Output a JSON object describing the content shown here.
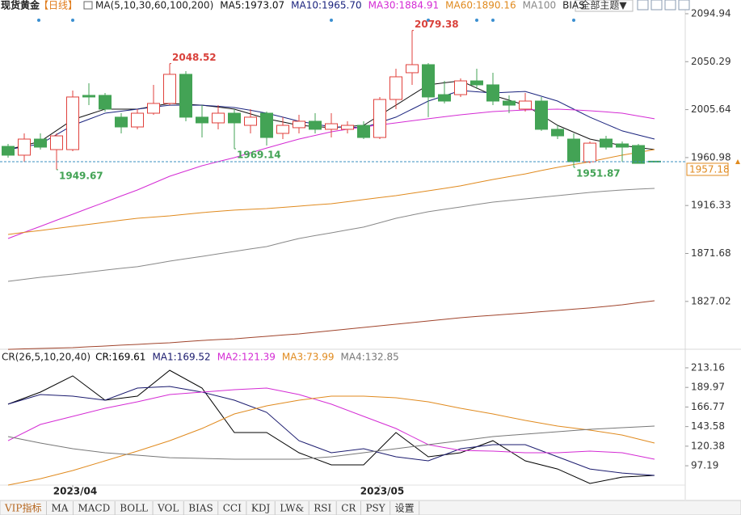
{
  "chart_data": [
    {
      "type": "candlestick",
      "title": "现货黄金",
      "period": "【日线】",
      "indicator": "MA(5,10,30,60,100,200)",
      "bias_label": "BIAS",
      "categories": [
        null,
        null,
        null,
        null,
        "2023/04",
        null,
        null,
        null,
        null,
        null,
        null,
        null,
        null,
        null,
        null,
        null,
        null,
        null,
        null,
        null,
        null,
        null,
        null,
        "2023/05",
        null,
        null,
        null,
        null,
        null,
        null,
        null,
        null,
        null,
        null,
        null,
        null,
        null,
        null,
        null,
        null,
        null
      ],
      "open": [
        1971.4,
        1963.2,
        1978.2,
        1968.4,
        1968.4,
        2018.9,
        2018.9,
        1998.6,
        1989.5,
        2002.3,
        2011.4,
        2038.5,
        1998.6,
        1993.3,
        2002.3,
        1991.0,
        2002.3,
        1983.5,
        1988.8,
        1994.8,
        1987.3,
        1987.3,
        1991.0,
        1979.7,
        2015.1,
        2040.0,
        2047.5,
        2019.6,
        2019.6,
        2032.4,
        2028.7,
        2013.6,
        2006.1,
        2013.6,
        1987.3,
        1978.2,
        1957.1,
        1978.2,
        1973.7,
        1972.2,
        1957.6
      ],
      "high": [
        1973.7,
        1983.5,
        1983.5,
        1983.5,
        2023.4,
        2030.2,
        2021.1,
        2002.3,
        2006.1,
        2028.7,
        2048.52,
        2041.5,
        2009.8,
        2009.8,
        2006.1,
        2006.1,
        2003.8,
        1998.6,
        2000.8,
        2002.3,
        2002.3,
        1994.8,
        1994.8,
        2017.4,
        2043.7,
        2079.38,
        2049.0,
        2032.4,
        2034.7,
        2043.7,
        2040.0,
        2018.9,
        2021.1,
        2017.4,
        1991.0,
        1983.5,
        1976.0,
        1981.2,
        1976.0,
        1973.7,
        1957.8
      ],
      "low": [
        1960.9,
        1957.1,
        1968.4,
        1949.67,
        1966.9,
        2009.8,
        2003.8,
        1983.5,
        1987.3,
        2000.8,
        2009.8,
        1994.8,
        1979.7,
        1987.3,
        1969.14,
        1983.5,
        1972.2,
        1978.2,
        1983.5,
        1983.5,
        1979.7,
        1983.5,
        1978.2,
        1978.2,
        2006.1,
        2028.7,
        1998.6,
        2011.4,
        2017.4,
        2024.9,
        2009.8,
        2002.3,
        2003.8,
        1985.8,
        1978.2,
        1951.87,
        1955.6,
        1968.4,
        1957.1,
        1955.6,
        1956.9
      ],
      "close": [
        1963.2,
        1978.2,
        1970.7,
        1981.2,
        2017.4,
        2017.4,
        2006.1,
        1989.5,
        2002.3,
        2011.4,
        2038.5,
        1998.6,
        1993.3,
        2002.3,
        1993.3,
        1998.6,
        1979.7,
        1991.0,
        1994.8,
        1987.3,
        1992.5,
        1991.0,
        1979.7,
        2015.1,
        2036.2,
        2047.5,
        2017.4,
        2013.6,
        2032.4,
        2028.7,
        2013.6,
        2009.8,
        2013.6,
        1987.3,
        1981.2,
        1957.1,
        1974.4,
        1970.7,
        1970.7,
        1955.6,
        1957.18
      ],
      "up_color": "#e0413c",
      "down_color": "#43a355",
      "ylim": [
        1780.2,
        2101.7
      ],
      "yticks": [
        2094.94,
        2050.29,
        2005.64,
        1960.98,
        1916.33,
        1871.68,
        1827.02
      ],
      "series": [
        {
          "name": "MA5:1973.07",
          "color": "#111111",
          "values": [
            1968.4,
            1972.2,
            1976.0,
            1986.2,
            1996.3,
            2001.2,
            2006.1,
            2006.1,
            2006.1,
            2008.8,
            2011.4,
            2010.6,
            2009.8,
            2008.0,
            2006.1,
            2001.6,
            1997.1,
            1994.1,
            1991.0,
            1989.9,
            1988.8,
            1989.9,
            1991.0,
            2000.4,
            2009.8,
            2019.3,
            2028.7,
            2030.6,
            2032.4,
            2025.7,
            2018.9,
            2014.4,
            2009.8,
            2000.4,
            1991.0,
            1984.6,
            1978.2,
            1975.2,
            1972.2,
            1970.3,
            1968.4
          ]
        },
        {
          "name": "MA10:1965.70",
          "color": "#1a237e",
          "values": [
            1968.4,
            1971.1,
            1973.7,
            1982.4,
            1991.0,
            1996.7,
            2002.3,
            2004.2,
            2006.1,
            2008.0,
            2009.8,
            2009.8,
            2009.8,
            2008.7,
            2007.6,
            2005.0,
            2002.3,
            1998.6,
            1994.8,
            1992.2,
            1989.5,
            1989.2,
            1988.8,
            1993.7,
            1998.6,
            2006.1,
            2013.6,
            2018.5,
            2023.4,
            2022.3,
            2021.1,
            2021.9,
            2022.6,
            2018.1,
            2013.6,
            2006.1,
            1998.6,
            1992.2,
            1985.8,
            1982.0,
            1978.2
          ]
        },
        {
          "name": "MA30:1884.91",
          "color": "#d42bd4",
          "values": [
            1885.6,
            1891.3,
            1896.9,
            1902.6,
            1908.2,
            1913.9,
            1919.5,
            1925.2,
            1930.8,
            1937.2,
            1943.6,
            1948.5,
            1953.4,
            1957.2,
            1960.9,
            1965.4,
            1969.9,
            1974.1,
            1978.2,
            1981.6,
            1985.0,
            1987.3,
            1989.5,
            1991.4,
            1993.3,
            1995.2,
            1997.1,
            1999.0,
            2000.8,
            2002.3,
            2003.8,
            2004.6,
            2005.3,
            2005.7,
            2006.1,
            2005.4,
            2004.6,
            2003.5,
            2002.3,
            1999.7,
            1997.1
          ]
        },
        {
          "name": "MA60:1890.16",
          "color": "#e08a1e",
          "values": [
            1889.4,
            1891.3,
            1893.1,
            1895.0,
            1896.9,
            1898.8,
            1900.7,
            1902.6,
            1904.4,
            1905.6,
            1906.7,
            1908.2,
            1909.7,
            1910.9,
            1912.0,
            1912.8,
            1913.5,
            1914.6,
            1915.7,
            1916.9,
            1918.0,
            1919.9,
            1921.8,
            1923.7,
            1925.5,
            1927.8,
            1930.0,
            1932.3,
            1934.6,
            1937.6,
            1940.6,
            1943.2,
            1945.8,
            1948.9,
            1951.9,
            1954.5,
            1957.1,
            1960.2,
            1963.2,
            1965.8,
            1968.4
          ]
        },
        {
          "name": "MA100",
          "color": "#888888",
          "values": [
            1845.7,
            1847.6,
            1849.5,
            1851.0,
            1852.5,
            1854.4,
            1856.2,
            1857.8,
            1859.3,
            1861.9,
            1864.5,
            1866.8,
            1869.0,
            1871.3,
            1873.6,
            1875.9,
            1878.1,
            1881.9,
            1885.6,
            1888.3,
            1890.9,
            1893.6,
            1896.2,
            1900.3,
            1904.4,
            1907.5,
            1910.5,
            1912.8,
            1915.0,
            1917.3,
            1919.5,
            1921.0,
            1922.5,
            1924.0,
            1925.5,
            1927.0,
            1928.5,
            1929.7,
            1930.8,
            1931.6,
            1932.3
          ]
        },
        {
          "color": "#a0442c",
          "values": [
            1782.4,
            1782.8,
            1783.2,
            1783.6,
            1784.0,
            1784.8,
            1785.5,
            1786.3,
            1787.0,
            1787.8,
            1788.5,
            1789.6,
            1790.7,
            1791.5,
            1792.2,
            1793.4,
            1794.5,
            1795.7,
            1796.8,
            1798.3,
            1799.8,
            1801.3,
            1802.8,
            1804.3,
            1805.8,
            1807.3,
            1808.8,
            1810.3,
            1811.8,
            1813.0,
            1814.1,
            1815.2,
            1816.3,
            1817.5,
            1818.6,
            1819.8,
            1820.9,
            1822.4,
            1823.9,
            1825.8,
            1827.6
          ]
        }
      ],
      "annotations": [
        {
          "value": 2048.52
        },
        {
          "value": 2079.38
        },
        {
          "value": 1949.67
        },
        {
          "value": 1969.14
        },
        {
          "value": 1951.87
        }
      ],
      "last_price": 1957.18
    },
    {
      "type": "line",
      "title": "CR(26,5,10,20,40)",
      "categories": [
        null,
        null,
        null,
        null,
        null,
        null,
        null,
        null,
        null,
        null,
        null,
        null,
        null,
        null,
        null,
        null,
        null,
        null,
        null,
        null,
        null
      ],
      "ylim": [
        74.3,
        222.7
      ],
      "yticks": [
        213.16,
        189.97,
        166.77,
        143.58,
        120.38,
        97.19
      ],
      "series": [
        {
          "name": "CR:169.61",
          "color": "#000000",
          "values": [
            170.1,
            184.4,
            203.6,
            174.8,
            179.6,
            210.3,
            189.2,
            136.5,
            136.5,
            112.6,
            98.2,
            98.2,
            136.5,
            107.8,
            112.6,
            126.9,
            103.0,
            93.4,
            76.2,
            83.8,
            85.8
          ]
        },
        {
          "name": "MA1:169.52",
          "color": "#1a1a6e",
          "values": [
            170.1,
            181.5,
            179.6,
            174.8,
            189.2,
            191.1,
            184.4,
            174.8,
            160.5,
            126.9,
            112.6,
            117.4,
            107.8,
            103.0,
            117.4,
            122.2,
            122.2,
            107.8,
            93.4,
            88.6,
            85.8
          ]
        },
        {
          "name": "MA2:121.39",
          "color": "#d42bd4",
          "values": [
            126.9,
            146.1,
            155.7,
            165.3,
            172.9,
            181.5,
            184.4,
            187.3,
            189.2,
            181.5,
            170.1,
            155.7,
            141.3,
            122.2,
            115.4,
            114.5,
            112.6,
            112.6,
            114.5,
            112.6,
            104.9
          ]
        },
        {
          "name": "MA3:73.99",
          "color": "#e08a1e",
          "values": [
            74.3,
            81.9,
            91.5,
            103.0,
            114.5,
            126.9,
            141.3,
            158.6,
            168.1,
            174.8,
            179.6,
            179.6,
            177.7,
            172.9,
            165.3,
            158.6,
            150.9,
            144.2,
            139.4,
            133.6,
            124.1
          ]
        },
        {
          "name": "MA4:132.85",
          "color": "#777777",
          "values": [
            131.7,
            124.1,
            117.4,
            112.6,
            109.7,
            106.8,
            105.9,
            104.9,
            104.9,
            104.9,
            107.8,
            112.6,
            117.4,
            122.2,
            126.9,
            131.7,
            134.6,
            137.5,
            140.4,
            142.3,
            144.2
          ]
        }
      ]
    }
  ],
  "toolbar": {
    "theme": "全部主题▼",
    "tabs": [
      "VIP指标",
      "MA",
      "MACD",
      "BOLL",
      "VOL",
      "BIAS",
      "CCI",
      "KDJ",
      "LW&",
      "RSI",
      "CR",
      "PSY",
      "设置"
    ]
  }
}
